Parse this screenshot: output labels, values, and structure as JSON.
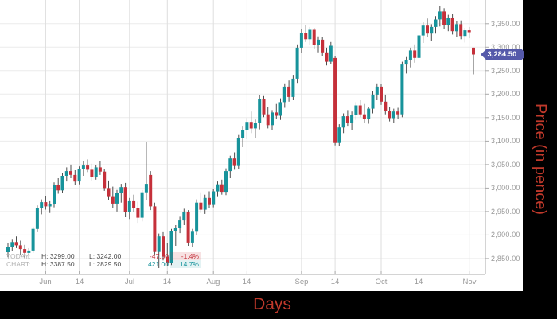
{
  "page": {
    "x_axis_title": "Days",
    "y_axis_title": "Price (in pence)",
    "current_price_label": "3,284.50",
    "colors": {
      "up": "#17939b",
      "down": "#c5303a",
      "wick": "#4d4d4d",
      "axis": "#aaaaaa",
      "grid_h": "#ececec",
      "grid_v": "#dedede",
      "tick_text": "#999999",
      "badge": "#5559aa",
      "title_red": "#c0392b",
      "background": "#000000",
      "panel": "#ffffff"
    },
    "legend": {
      "rows": [
        {
          "label": "TODAY:",
          "high": "H: 3299.00",
          "low": "L: 3242.00",
          "change": "-47.50",
          "pct": "-1.4%",
          "trend": "down"
        },
        {
          "label": "CHART:",
          "high": "H: 3387.50",
          "low": "L: 2829.50",
          "change": "421.00",
          "pct": "14.7%",
          "trend": "up"
        }
      ]
    }
  },
  "chart_data": {
    "type": "candlestick",
    "title": "",
    "xlabel": "Days",
    "ylabel": "Price (in pence)",
    "ylim": [
      2816,
      3392
    ],
    "grid": true,
    "legend_position": "bottom-left",
    "current_price": 3284.5,
    "today": {
      "high": 3299.0,
      "low": 3242.0,
      "change": -47.5,
      "change_pct": -1.4
    },
    "chart_range": {
      "high": 3387.5,
      "low": 2829.5,
      "change": 421.0,
      "change_pct": 14.7
    },
    "y_ticks": [
      {
        "value": 3350,
        "label": "3,350.00"
      },
      {
        "value": 3300,
        "label": "3,300.00"
      },
      {
        "value": 3250,
        "label": "3,250.00"
      },
      {
        "value": 3200,
        "label": "3,200.00"
      },
      {
        "value": 3150,
        "label": "3,150.00"
      },
      {
        "value": 3100,
        "label": "3,100.00"
      },
      {
        "value": 3050,
        "label": "3,050.00"
      },
      {
        "value": 3000,
        "label": "3,000.00"
      },
      {
        "value": 2950,
        "label": "2,950.00"
      },
      {
        "value": 2900,
        "label": "2,900.00"
      },
      {
        "value": 2850,
        "label": "2,850.00"
      }
    ],
    "x_ticks": [
      {
        "label": "Jun",
        "index": 9
      },
      {
        "label": "14",
        "index": 17
      },
      {
        "label": "Jul",
        "index": 29
      },
      {
        "label": "14",
        "index": 38
      },
      {
        "label": "Aug",
        "index": 49
      },
      {
        "label": "14",
        "index": 57
      },
      {
        "label": "Sep",
        "index": 70
      },
      {
        "label": "14",
        "index": 78
      },
      {
        "label": "Oct",
        "index": 89
      },
      {
        "label": "14",
        "index": 98
      },
      {
        "label": "Nov",
        "index": 110
      }
    ],
    "candles_format": [
      "open",
      "high",
      "low",
      "close"
    ],
    "candles": [
      [
        2863.5,
        2882,
        2853,
        2875
      ],
      [
        2875,
        2890,
        2866,
        2885
      ],
      [
        2885,
        2897,
        2872,
        2878
      ],
      [
        2878,
        2888,
        2858,
        2870
      ],
      [
        2870,
        2879,
        2851,
        2862
      ],
      [
        2862,
        2872,
        2848,
        2867
      ],
      [
        2867,
        2918,
        2862,
        2913
      ],
      [
        2913,
        2963,
        2906,
        2958
      ],
      [
        2958,
        2976,
        2944,
        2970
      ],
      [
        2970,
        2983,
        2954,
        2961
      ],
      [
        2961,
        2972,
        2947,
        2966
      ],
      [
        2966,
        3012,
        2959,
        3006
      ],
      [
        3006,
        3021,
        2988,
        2995
      ],
      [
        2995,
        3032,
        2990,
        3026
      ],
      [
        3026,
        3044,
        3014,
        3036
      ],
      [
        3036,
        3050,
        3021,
        3028
      ],
      [
        3028,
        3038,
        3006,
        3014
      ],
      [
        3014,
        3046,
        3008,
        3040
      ],
      [
        3040,
        3058,
        3026,
        3048
      ],
      [
        3048,
        3061,
        3034,
        3039
      ],
      [
        3039,
        3052,
        3016,
        3024
      ],
      [
        3024,
        3049,
        3018,
        3044
      ],
      [
        3044,
        3057,
        3028,
        3035
      ],
      [
        3035,
        3041,
        2994,
        3000
      ],
      [
        3000,
        3016,
        2974,
        2981
      ],
      [
        2981,
        3003,
        2958,
        2967
      ],
      [
        2967,
        2996,
        2950,
        2990
      ],
      [
        2990,
        3009,
        2969,
        3002
      ],
      [
        3002,
        3011,
        2938,
        2949
      ],
      [
        2949,
        2979,
        2934,
        2972
      ],
      [
        2972,
        2986,
        2949,
        2957
      ],
      [
        2957,
        2971,
        2926,
        2937
      ],
      [
        2937,
        2996,
        2929,
        2991
      ],
      [
        2991,
        3099,
        2974,
        3009
      ],
      [
        3028,
        3036,
        2953,
        2961
      ],
      [
        2961,
        2969,
        2856,
        2864
      ],
      [
        2864,
        2903,
        2829.5,
        2897
      ],
      [
        2897,
        2906,
        2846,
        2854
      ],
      [
        2854,
        2883,
        2833,
        2841
      ],
      [
        2841,
        2913,
        2836,
        2908
      ],
      [
        2908,
        2921,
        2877,
        2916
      ],
      [
        2916,
        2939,
        2904,
        2931
      ],
      [
        2931,
        2956,
        2921,
        2949
      ],
      [
        2949,
        2953,
        2877,
        2884
      ],
      [
        2884,
        2913,
        2875,
        2907
      ],
      [
        2907,
        2976,
        2899,
        2969
      ],
      [
        2969,
        2991,
        2947,
        2954
      ],
      [
        2954,
        2986,
        2945,
        2979
      ],
      [
        2979,
        2993,
        2957,
        2964
      ],
      [
        2964,
        2999,
        2959,
        2993
      ],
      [
        2993,
        3014,
        2981,
        3008
      ],
      [
        3008,
        3018,
        2986,
        2992
      ],
      [
        2992,
        3042,
        2985,
        3036
      ],
      [
        3036,
        3069,
        3021,
        3063
      ],
      [
        3063,
        3076,
        3039,
        3047
      ],
      [
        3047,
        3113,
        3041,
        3106
      ],
      [
        3106,
        3131,
        3087,
        3123
      ],
      [
        3123,
        3149,
        3104,
        3141
      ],
      [
        3141,
        3163,
        3117,
        3127
      ],
      [
        3127,
        3146,
        3107,
        3139
      ],
      [
        3139,
        3198,
        3125,
        3189
      ],
      [
        3189,
        3196,
        3151,
        3157
      ],
      [
        3157,
        3173,
        3127,
        3134
      ],
      [
        3134,
        3166,
        3124,
        3161
      ],
      [
        3161,
        3179,
        3147,
        3154
      ],
      [
        3154,
        3191,
        3145,
        3183
      ],
      [
        3183,
        3223,
        3171,
        3216
      ],
      [
        3216,
        3229,
        3184,
        3194
      ],
      [
        3194,
        3241,
        3187,
        3233
      ],
      [
        3233,
        3306,
        3224,
        3299
      ],
      [
        3299,
        3339,
        3287,
        3331
      ],
      [
        3331,
        3347,
        3311,
        3317
      ],
      [
        3317,
        3343,
        3304,
        3337
      ],
      [
        3337,
        3341,
        3297,
        3304
      ],
      [
        3304,
        3323,
        3289,
        3316
      ],
      [
        3316,
        3321,
        3281,
        3289
      ],
      [
        3289,
        3299,
        3261,
        3269
      ],
      [
        3269,
        3311,
        3264,
        3303
      ],
      [
        3277,
        3281,
        3091,
        3096
      ],
      [
        3096,
        3136,
        3089,
        3129
      ],
      [
        3129,
        3159,
        3117,
        3153
      ],
      [
        3153,
        3166,
        3131,
        3139
      ],
      [
        3139,
        3163,
        3124,
        3156
      ],
      [
        3156,
        3183,
        3145,
        3176
      ],
      [
        3176,
        3187,
        3151,
        3157
      ],
      [
        3157,
        3179,
        3139,
        3147
      ],
      [
        3147,
        3173,
        3137,
        3169
      ],
      [
        3169,
        3206,
        3159,
        3199
      ],
      [
        3199,
        3223,
        3187,
        3216
      ],
      [
        3216,
        3221,
        3177,
        3184
      ],
      [
        3184,
        3199,
        3157,
        3164
      ],
      [
        3164,
        3173,
        3142,
        3149
      ],
      [
        3149,
        3169,
        3139,
        3163
      ],
      [
        3163,
        3171,
        3147,
        3157
      ],
      [
        3157,
        3269,
        3151,
        3263
      ],
      [
        3263,
        3279,
        3244,
        3273
      ],
      [
        3273,
        3299,
        3257,
        3293
      ],
      [
        3293,
        3306,
        3267,
        3277
      ],
      [
        3277,
        3331,
        3269,
        3325
      ],
      [
        3325,
        3353,
        3309,
        3346
      ],
      [
        3346,
        3361,
        3321,
        3329
      ],
      [
        3329,
        3349,
        3314,
        3343
      ],
      [
        3343,
        3366,
        3329,
        3359
      ],
      [
        3359,
        3387.5,
        3344,
        3376
      ],
      [
        3376,
        3383,
        3339,
        3347
      ],
      [
        3347,
        3369,
        3334,
        3363
      ],
      [
        3363,
        3371,
        3327,
        3334
      ],
      [
        3334,
        3356,
        3321,
        3349
      ],
      [
        3349,
        3357,
        3317,
        3324
      ],
      [
        3324,
        3341,
        3310,
        3336
      ],
      [
        3336,
        3343,
        3319,
        3332
      ],
      [
        3299,
        3299,
        3242,
        3284.5
      ]
    ]
  }
}
